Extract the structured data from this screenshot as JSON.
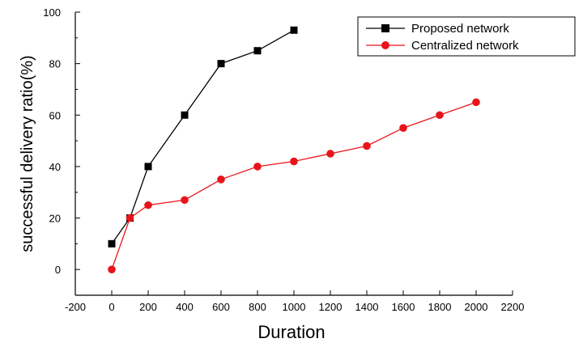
{
  "chart_data": {
    "type": "line",
    "title": "",
    "xlabel": "Duration",
    "ylabel": "successful delivery ratio(%)",
    "xlim": [
      -200,
      2200
    ],
    "ylim": [
      -10,
      100
    ],
    "x_ticks": [
      -200,
      0,
      200,
      400,
      600,
      800,
      1000,
      1200,
      1400,
      1600,
      1800,
      2000,
      2200
    ],
    "y_ticks": [
      0,
      20,
      40,
      60,
      80,
      100
    ],
    "grid": false,
    "legend_position": "top-right",
    "series": [
      {
        "name": "Proposed network",
        "color": "#000000",
        "marker": "square",
        "x": [
          0,
          100,
          200,
          400,
          600,
          800,
          1000
        ],
        "y": [
          10,
          20,
          40,
          60,
          80,
          85,
          93
        ]
      },
      {
        "name": "Centralized network",
        "color": "#e8141b",
        "marker": "circle",
        "x": [
          0,
          100,
          200,
          400,
          600,
          800,
          1000,
          1200,
          1400,
          1600,
          1800,
          2000
        ],
        "y": [
          0,
          20,
          25,
          27,
          35,
          40,
          42,
          45,
          48,
          55,
          60,
          65
        ]
      }
    ]
  }
}
